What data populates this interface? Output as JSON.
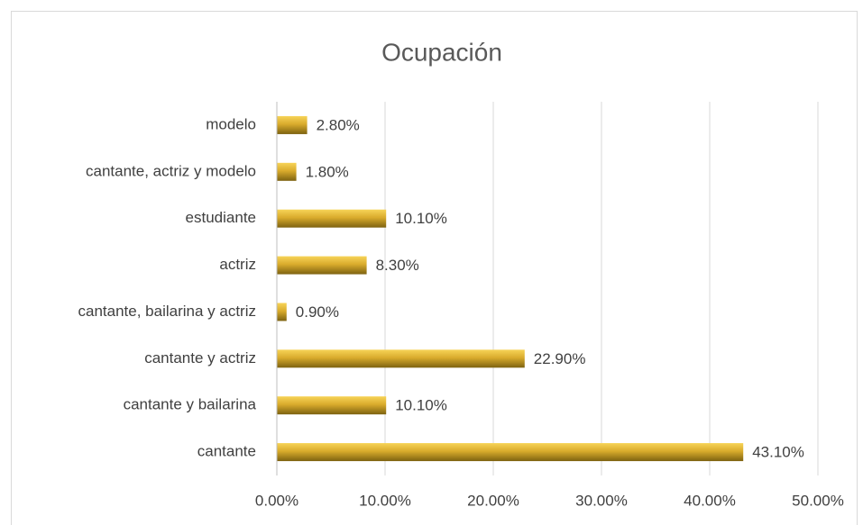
{
  "chart_data": {
    "type": "bar",
    "orientation": "horizontal",
    "title": "Ocupación",
    "categories": [
      "cantante",
      "cantante y bailarina",
      "cantante y actriz",
      "cantante, bailarina y actriz",
      "actriz",
      "estudiante",
      "cantante, actriz y modelo",
      "modelo"
    ],
    "values": [
      43.1,
      10.1,
      22.9,
      0.9,
      8.3,
      10.1,
      1.8,
      2.8
    ],
    "value_labels": [
      "43.10%",
      "10.10%",
      "22.90%",
      "0.90%",
      "8.30%",
      "10.10%",
      "1.80%",
      "2.80%"
    ],
    "color": "#d9ab2c",
    "xlim": [
      0,
      50
    ],
    "xticks": [
      {
        "value": 0,
        "label": "0.00%"
      },
      {
        "value": 10,
        "label": "10.00%"
      },
      {
        "value": 20,
        "label": "20.00%"
      },
      {
        "value": 30,
        "label": "30.00%"
      },
      {
        "value": 40,
        "label": "40.00%"
      },
      {
        "value": 50,
        "label": "50.00%"
      }
    ],
    "grid": true
  }
}
